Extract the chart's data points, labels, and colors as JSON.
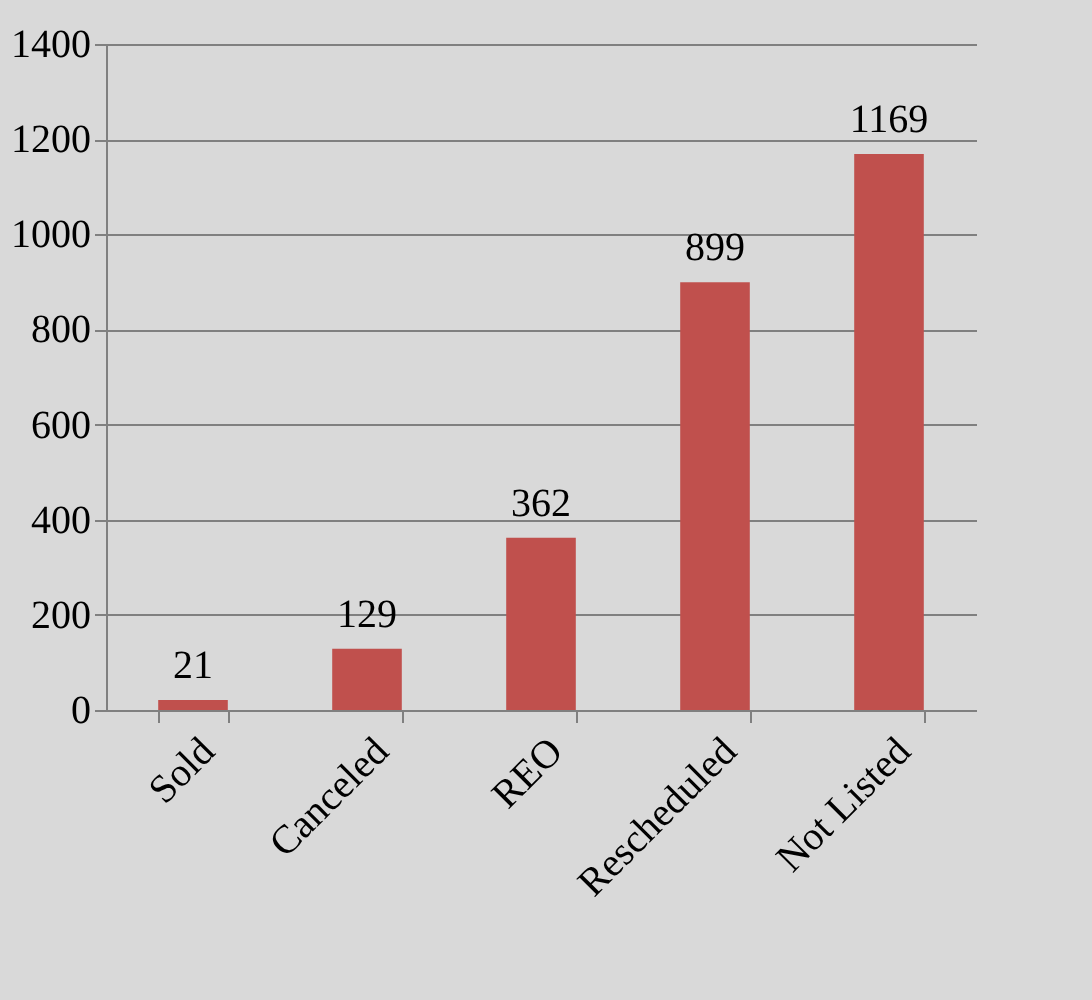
{
  "chart_data": {
    "type": "bar",
    "categories": [
      "Sold",
      "Canceled",
      "REO",
      "Rescheduled",
      "Not Listed"
    ],
    "values": [
      21,
      129,
      362,
      899,
      1169
    ],
    "color": "#c0504d",
    "ylim": [
      0,
      1400
    ],
    "yticks": [
      0,
      200,
      400,
      600,
      800,
      1000,
      1200,
      1400
    ],
    "grid": "y",
    "data_labels": true
  }
}
